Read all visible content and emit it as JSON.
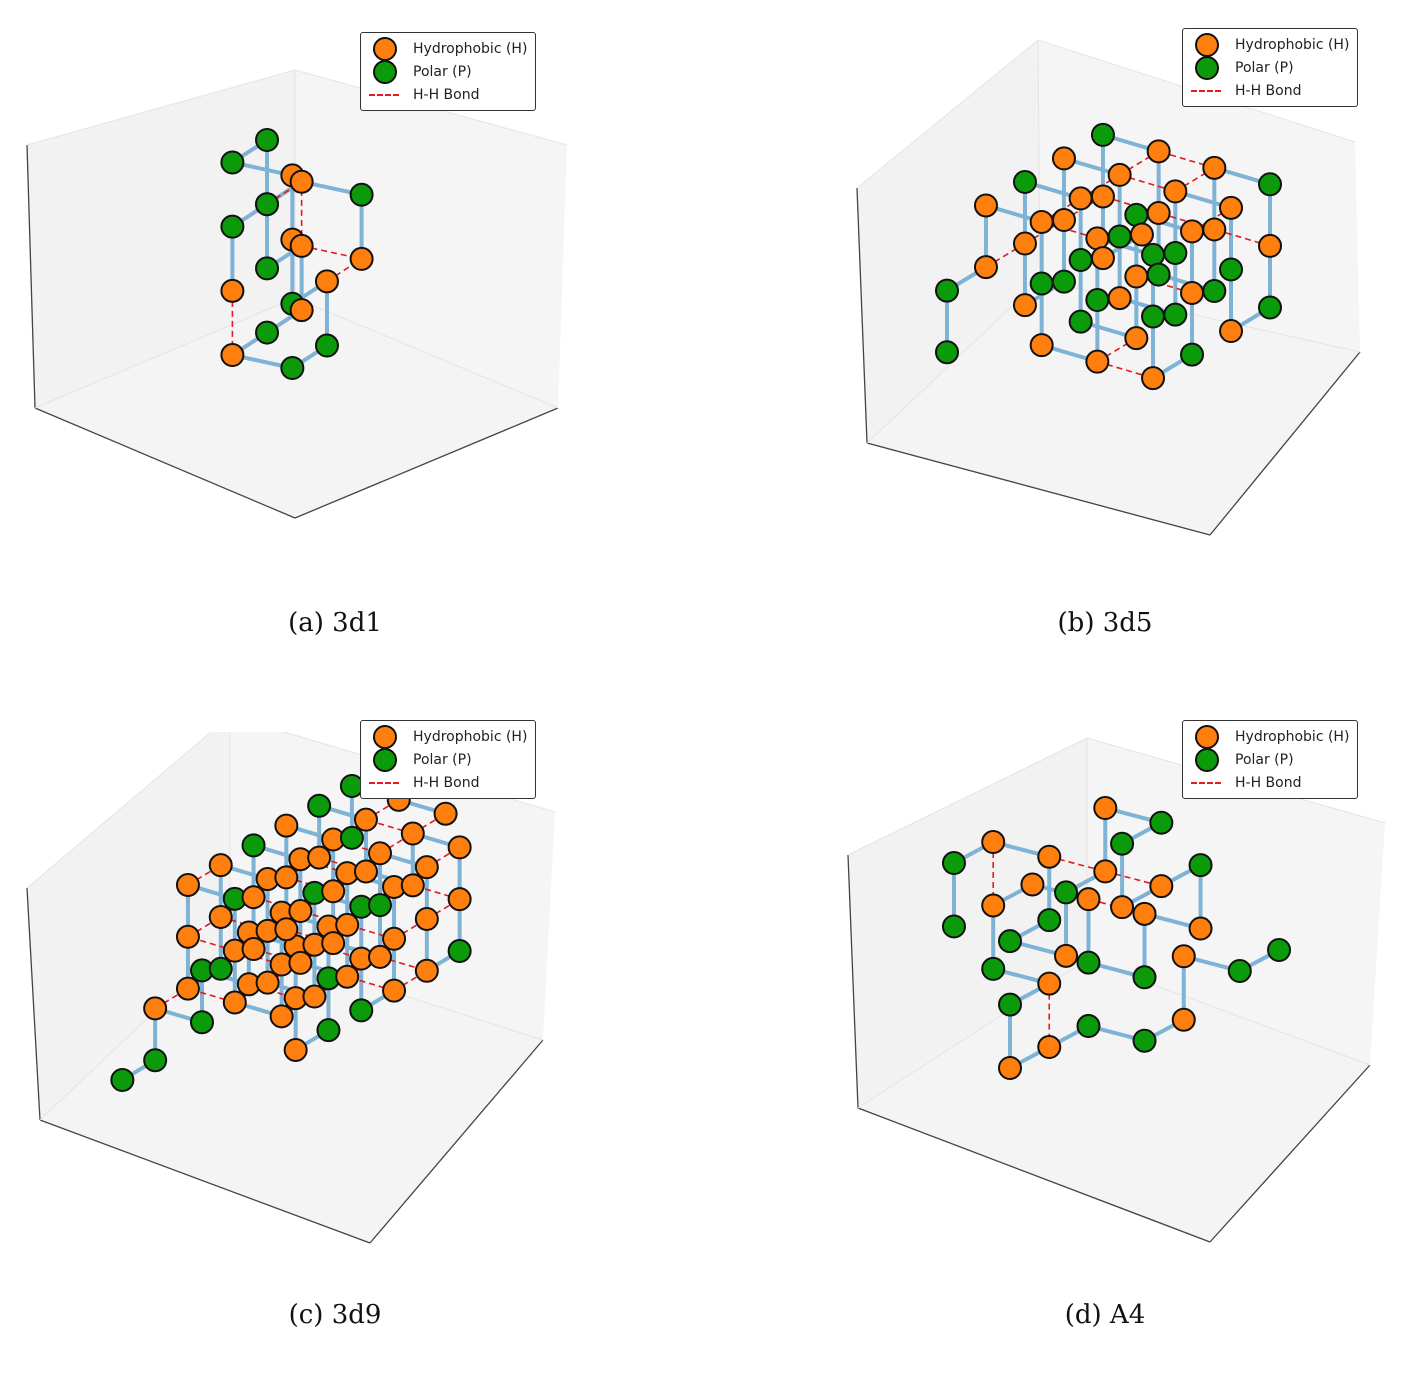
{
  "colors": {
    "hydrophobic": "#ff7f0e",
    "polar": "#0a9a0a",
    "backbone": "#7eb3d6",
    "hh_bond": "#e41a1c",
    "pane": "#f2f2f2"
  },
  "legend": {
    "hydrophobic": "Hydrophobic (H)",
    "polar": "Polar (P)",
    "hh_bond": "H-H Bond"
  },
  "chart_data": [
    {
      "type": "scatter",
      "subtype": "3d-lattice-fold",
      "caption": "(a) 3d1",
      "sequence": "HPHPPHHPHPPHPHHPPHPH",
      "coords": [
        [
          0,
          0,
          0
        ],
        [
          0,
          0,
          1
        ],
        [
          1,
          0,
          1
        ],
        [
          1,
          0,
          2
        ],
        [
          0,
          0,
          2
        ],
        [
          0,
          1,
          2
        ],
        [
          0,
          1,
          1
        ],
        [
          0,
          1,
          0
        ],
        [
          1,
          1,
          0
        ],
        [
          1,
          1,
          -1
        ],
        [
          0,
          1,
          -1
        ],
        [
          0,
          0,
          -1
        ],
        [
          1,
          0,
          -1
        ],
        [
          2,
          0,
          -1
        ],
        [
          2,
          0,
          0
        ],
        [
          1,
          0,
          0
        ],
        [
          1,
          0,
          1
        ],
        [
          2,
          0,
          1
        ],
        [
          2,
          1,
          1
        ],
        [
          2,
          1,
          0
        ]
      ],
      "legend": [
        "Hydrophobic (H)",
        "Polar (P)",
        "H-H Bond"
      ]
    },
    {
      "type": "scatter",
      "subtype": "3d-lattice-fold",
      "caption": "(b) 3d5",
      "sequence": "PPHHHPHHPHPPHPHHPHHPPHPHHPHHHPHPPHHPHPHPHHPPHHPHHH",
      "coords": [
        [
          0,
          0,
          0
        ],
        [
          0,
          0,
          1
        ],
        [
          1,
          0,
          1
        ],
        [
          1,
          0,
          2
        ],
        [
          1,
          1,
          2
        ],
        [
          1,
          1,
          1
        ],
        [
          1,
          1,
          0
        ],
        [
          1,
          2,
          0
        ],
        [
          1,
          2,
          1
        ],
        [
          1,
          2,
          2
        ],
        [
          1,
          3,
          2
        ],
        [
          1,
          3,
          1
        ],
        [
          1,
          3,
          0
        ],
        [
          2,
          3,
          0
        ],
        [
          2,
          3,
          1
        ],
        [
          2,
          3,
          2
        ],
        [
          2,
          2,
          2
        ],
        [
          2,
          2,
          1
        ],
        [
          2,
          2,
          0
        ],
        [
          2,
          1,
          0
        ],
        [
          2,
          1,
          1
        ],
        [
          2,
          1,
          2
        ],
        [
          2,
          0,
          2
        ],
        [
          2,
          0,
          1
        ],
        [
          2,
          0,
          0
        ],
        [
          3,
          0,
          0
        ],
        [
          3,
          0,
          1
        ],
        [
          3,
          0,
          2
        ],
        [
          3,
          1,
          2
        ],
        [
          3,
          1,
          1
        ],
        [
          3,
          1,
          0
        ],
        [
          3,
          2,
          0
        ],
        [
          3,
          2,
          1
        ],
        [
          3,
          2,
          2
        ],
        [
          3,
          3,
          2
        ],
        [
          3,
          3,
          1
        ],
        [
          3,
          3,
          0
        ],
        [
          4,
          3,
          0
        ],
        [
          4,
          3,
          1
        ],
        [
          4,
          3,
          2
        ],
        [
          4,
          2,
          2
        ],
        [
          4,
          2,
          1
        ],
        [
          4,
          2,
          0
        ],
        [
          4,
          1,
          0
        ],
        [
          4,
          1,
          1
        ],
        [
          4,
          1,
          2
        ],
        [
          4,
          0,
          2
        ],
        [
          4,
          0,
          1
        ],
        [
          4,
          0,
          0
        ],
        [
          5,
          0,
          0
        ]
      ],
      "legend": [
        "Hydrophobic (H)",
        "Polar (P)",
        "H-H Bond"
      ]
    },
    {
      "type": "scatter",
      "subtype": "3d-lattice-fold",
      "caption": "(c) 3d9",
      "sequence": "PPHPPHHHHHPPHHHHHHPHHHPHHHHHHHPPHPHHHHHHHHHPHHHHHHHHHPHHHHPHHHHHHPHPPHH",
      "coords": [
        [
          0,
          0,
          0
        ],
        [
          1,
          0,
          0
        ],
        [
          1,
          0,
          1
        ],
        [
          1,
          1,
          1
        ],
        [
          1,
          1,
          2
        ],
        [
          1,
          2,
          2
        ],
        [
          1,
          2,
          3
        ],
        [
          1,
          3,
          3
        ],
        [
          1,
          3,
          2
        ],
        [
          1,
          3,
          1
        ],
        [
          2,
          3,
          1
        ],
        [
          2,
          3,
          2
        ],
        [
          2,
          3,
          3
        ],
        [
          2,
          2,
          3
        ],
        [
          2,
          2,
          2
        ],
        [
          2,
          2,
          1
        ],
        [
          2,
          1,
          1
        ],
        [
          2,
          1,
          2
        ],
        [
          2,
          1,
          3
        ],
        [
          2,
          0,
          3
        ],
        [
          2,
          0,
          2
        ],
        [
          2,
          0,
          1
        ],
        [
          3,
          0,
          1
        ],
        [
          3,
          0,
          2
        ],
        [
          3,
          0,
          3
        ],
        [
          3,
          1,
          3
        ],
        [
          3,
          1,
          2
        ],
        [
          3,
          1,
          1
        ],
        [
          3,
          2,
          1
        ],
        [
          3,
          2,
          2
        ],
        [
          3,
          2,
          3
        ],
        [
          3,
          3,
          3
        ],
        [
          3,
          3,
          2
        ],
        [
          3,
          3,
          1
        ],
        [
          4,
          3,
          1
        ],
        [
          4,
          3,
          2
        ],
        [
          4,
          3,
          3
        ],
        [
          4,
          2,
          3
        ],
        [
          4,
          2,
          2
        ],
        [
          4,
          2,
          1
        ],
        [
          4,
          1,
          1
        ],
        [
          4,
          1,
          2
        ],
        [
          4,
          1,
          3
        ],
        [
          4,
          0,
          3
        ],
        [
          4,
          0,
          2
        ],
        [
          4,
          0,
          1
        ],
        [
          5,
          0,
          1
        ],
        [
          5,
          0,
          2
        ],
        [
          5,
          0,
          3
        ],
        [
          5,
          1,
          3
        ],
        [
          5,
          1,
          2
        ],
        [
          5,
          1,
          1
        ],
        [
          5,
          2,
          1
        ],
        [
          5,
          2,
          2
        ],
        [
          5,
          2,
          3
        ],
        [
          5,
          3,
          3
        ],
        [
          5,
          3,
          2
        ],
        [
          5,
          3,
          1
        ],
        [
          6,
          3,
          1
        ],
        [
          6,
          3,
          2
        ],
        [
          6,
          3,
          3
        ],
        [
          6,
          2,
          3
        ],
        [
          6,
          2,
          2
        ],
        [
          6,
          1,
          2
        ],
        [
          6,
          1,
          3
        ],
        [
          6,
          0,
          3
        ],
        [
          6,
          0,
          2
        ],
        [
          7,
          0,
          2
        ],
        [
          7,
          0,
          3
        ],
        [
          7,
          1,
          3
        ],
        [
          7,
          2,
          3
        ]
      ],
      "legend": [
        "Hydrophobic (H)",
        "Polar (P)",
        "H-H Bond"
      ]
    },
    {
      "type": "scatter",
      "subtype": "3d-lattice-fold",
      "caption": "(d) A4",
      "sequence": "PPHHPPHPHHPPHHPHHPPHHHPHPHHPPHHPP",
      "coords": [
        [
          0,
          0,
          0
        ],
        [
          0,
          0,
          1
        ],
        [
          1,
          0,
          1
        ],
        [
          1,
          1,
          1
        ],
        [
          1,
          1,
          0
        ],
        [
          0,
          1,
          0
        ],
        [
          0,
          2,
          0
        ],
        [
          0,
          2,
          1
        ],
        [
          1,
          2,
          1
        ],
        [
          1,
          2,
          2
        ],
        [
          1,
          3,
          2
        ],
        [
          0,
          3,
          2
        ],
        [
          0,
          3,
          1
        ],
        [
          1,
          3,
          1
        ],
        [
          2,
          3,
          1
        ],
        [
          2,
          3,
          0
        ],
        [
          2,
          2,
          0
        ],
        [
          2,
          2,
          -1
        ],
        [
          2,
          1,
          -1
        ],
        [
          2,
          1,
          0
        ],
        [
          2,
          0,
          0
        ],
        [
          1,
          0,
          0
        ],
        [
          1,
          0,
          -1
        ],
        [
          1,
          1,
          -1
        ],
        [
          0,
          1,
          -1
        ],
        [
          0,
          1,
          -2
        ],
        [
          1,
          1,
          -2
        ],
        [
          2,
          1,
          -2
        ],
        [
          2,
          2,
          -2
        ],
        [
          3,
          2,
          -2
        ],
        [
          3,
          2,
          -1
        ],
        [
          3,
          3,
          -1
        ],
        [
          4,
          3,
          -1
        ]
      ],
      "legend": [
        "Hydrophobic (H)",
        "Polar (P)",
        "H-H Bond"
      ]
    }
  ]
}
